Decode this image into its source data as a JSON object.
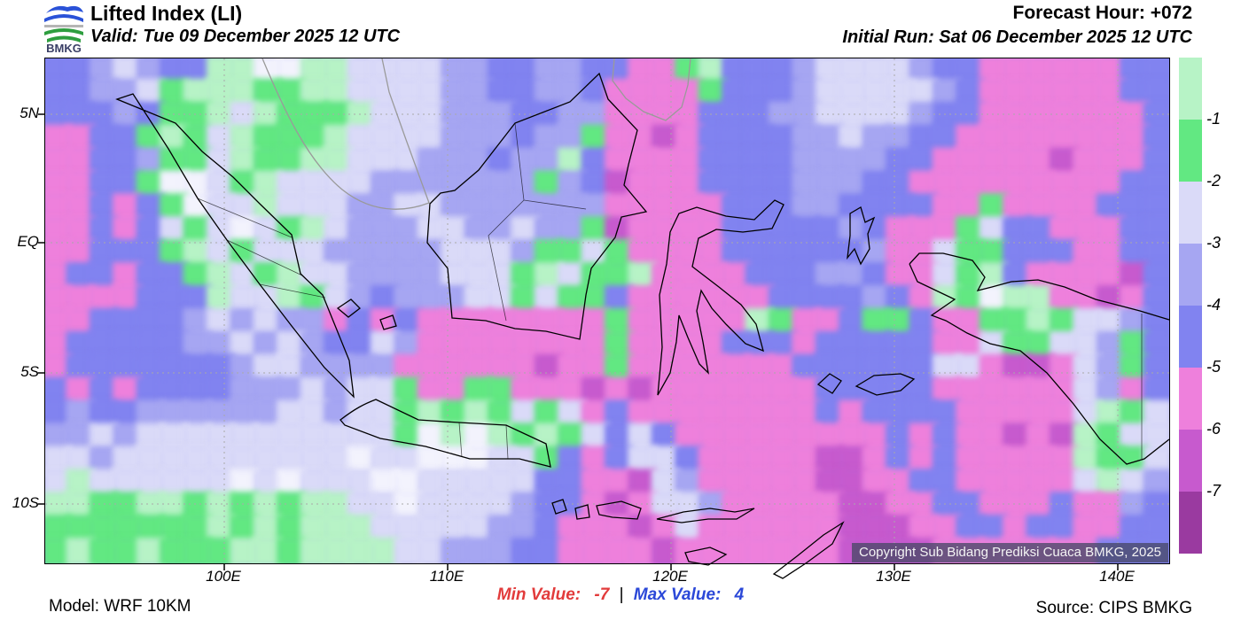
{
  "header": {
    "logo_text": "BMKG",
    "title": "Lifted Index (LI)",
    "valid": "Valid: Tue 09 December 2025 12 UTC",
    "forecast_hour": "Forecast Hour: +072",
    "initial_run": "Initial Run: Sat 06 December 2025 12 UTC"
  },
  "map": {
    "copyright": "Copyright Sub Bidang Prediksi Cuaca BMKG, 2025",
    "y_ticks": [
      "5N",
      "EQ",
      "5S",
      "10S"
    ],
    "x_ticks": [
      "100E",
      "110E",
      "120E",
      "130E",
      "140E"
    ]
  },
  "footer": {
    "model": "Model: WRF 10KM",
    "min_label": "Min Value:",
    "min_value": "-7",
    "separator": "|",
    "max_label": "Max Value:",
    "max_value": "4",
    "source": "Source: CIPS BMKG"
  },
  "chart_data": {
    "type": "heatmap",
    "title": "Lifted Index (LI)",
    "parameter": "Lifted Index",
    "valid_time": "Tue 09 December 2025 12 UTC",
    "initial_run": "Sat 06 December 2025 12 UTC",
    "forecast_hour": "+072",
    "min_value": -7,
    "max_value": 4,
    "lon_range": [
      92,
      142.3
    ],
    "lat_range": [
      -12.3,
      7.1
    ],
    "colorbar": {
      "labels": [
        "-1",
        "-2",
        "-3",
        "-4",
        "-5",
        "-6",
        "-7"
      ],
      "colors": [
        "#b7f3c6",
        "#62e882",
        "#dadaf8",
        "#a6a6f2",
        "#8183f0",
        "#ee80dc",
        "#c75ace",
        "#9a3aa0"
      ],
      "ranges": [
        ">-1",
        "-1 to -2",
        "-2 to -3",
        "-3 to -4",
        "-4 to -5",
        "-5 to -6",
        "-6 to -7",
        "<-7"
      ]
    },
    "grid": {
      "palette": {
        "W": "#f3f3fd",
        "g": "#b7f3c6",
        "G": "#62e882",
        "L": "#dadaf8",
        "b": "#a6a6f2",
        "B": "#8183f0",
        "P": "#ee80dc",
        "M": "#c75ace",
        "D": "#9a3aa0"
      },
      "rows": [
        [
          "BBbLbB",
          "BggWWg",
          "gLLLLb",
          "bBBbbB",
          "BPPGgB",
          "BBbLLL",
          "LbBBPP",
          "PPPPBB"
        ],
        [
          "BBbbLG",
          "gggGGg",
          "gLLLLb",
          "bBBbbB",
          "PPPPGB",
          "BBbLLL",
          "LLbBPP",
          "PPPPBB"
        ],
        [
          "BBBbBG",
          "GgLgGG",
          "GgLLLb",
          "bbBBbb",
          "PPPPBB",
          "BbbLLL",
          "LbBBPP",
          "PPPPPB"
        ],
        [
          "PPBBGg",
          "GLgGGG",
          "gLLLLb",
          "bbBbbG",
          "PPMPBB",
          "BBbbLb",
          "bBBPPP",
          "PPPPPB"
        ],
        [
          "PPBBbG",
          "GLgGGg",
          "gLLLbb",
          "bBbbgB",
          "PPPPBB",
          "BBbbbb",
          "BBPPPP",
          "PMPPPB"
        ],
        [
          "PPBBGW",
          "WLGgLL",
          "LLbbbb",
          "bbbGbB",
          "MPPPBB",
          "BBbbbB",
          "BPPPPP",
          "PPPPBB"
        ],
        [
          "PPBPBG",
          "WLLgLL",
          "LbbLLb",
          "bbbbbb",
          "PPPPPB",
          "BBbbBB",
          "BBPPGP",
          "PPPBBB"
        ],
        [
          "PPBPBL",
          "GLWLGg",
          "LbbbLL",
          "bbLbbG",
          "MPPPPB",
          "BBBBbB",
          "PPPGLB",
          "BPPPBB"
        ],
        [
          "PPBBBG",
          "gLGLLL",
          "bbbbbL",
          "LLbGGL",
          "GPPPPB",
          "BBBBBb",
          "PPLGGB",
          "BBPPBB"
        ],
        [
          "PBBPBB",
          "GgLGgL",
          "LbbbbL",
          "LLGgLG",
          "GgPPPP",
          "BBBbbB",
          "PPLGgB",
          "PPPPMB"
        ],
        [
          "PPPPBB",
          "BgLLgG",
          "LbBbbb",
          "LLGLGG",
          "BPPPPP",
          "PBBBBb",
          "BPgGWg",
          "gPPMPB"
        ],
        [
          "PPBBBB",
          "bLbLbb",
          "PBPBPP",
          "PPPPPP",
          "GPPPPP",
          "gGPPBG",
          "GBPPGG",
          "gGLLbB"
        ],
        [
          "PBBBBB",
          "bbLbLb",
          "BBLbPP",
          "PPPPPP",
          "GPPPPB",
          "BBPBBB",
          "BBPPLG",
          "GLLbGB"
        ],
        [
          "PBBBBB",
          "BBbLLb",
          "bbbPPP",
          "PPPMPP",
          "GPPPPP",
          "PPBBBB",
          "BBLLPM",
          "MPLbGB"
        ],
        [
          "BPBPBB",
          "BBbbbL",
          "bLLGPP",
          "GGPPPM",
          "PMPPPP",
          "PPPBBB",
          "BBPPPP",
          "PPLbPB"
        ],
        [
          "BbBBbb",
          "bbbbLL",
          "bLLGgG",
          "gGLGLP",
          "BPPPPP",
          "PPPBPB",
          "BBBPPP",
          "PPLgGL"
        ],
        [
          "bbLbLL",
          "LLLLLL",
          "LLLGWg",
          "WgGgGL",
          "BLBPPP",
          "PPPPPP",
          "BPBPPM",
          "PMgGLL"
        ],
        [
          "LLbLLL",
          "LLLLLL",
          "LWLLWW",
          "WLLGBP",
          "BLLBPP",
          "PPPMMP",
          "BPBPPP",
          "PPgGGL"
        ],
        [
          "LgLLLL",
          "LLWLWL",
          "LLWWLL",
          "LLLBBP",
          "PMLbPP",
          "PPPMMP",
          "PBBPPP",
          "PPLgLb"
        ],
        [
          "ggGGgg",
          "GgGgGg",
          "gLLWLL",
          "LLbBBP",
          "MPLLbP",
          "PPPPMM",
          "PPBBPP",
          "PBPPbB"
        ],
        [
          "GGGGGG",
          "GgGgGg",
          "ggLLLL",
          "LbbBPP",
          "PMPLPP",
          "PPPPMM",
          "MPPBBP",
          "BBPPBB"
        ],
        [
          "GgGGgG",
          "GGggGg",
          "gggLLb",
          "bbBBPP",
          "PPMPPP",
          "PPPPMM",
          "MMPPPP",
          "PPPBBB"
        ]
      ]
    }
  }
}
